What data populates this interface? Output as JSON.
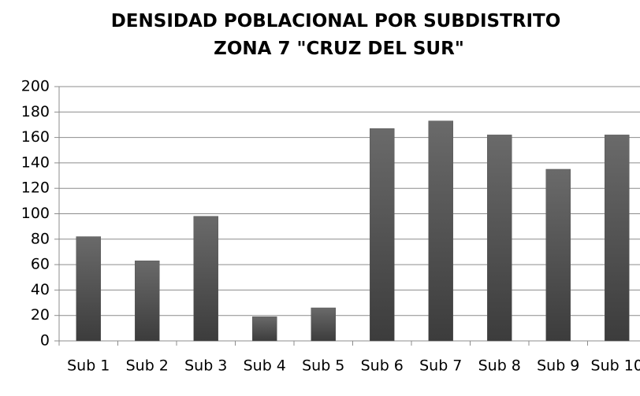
{
  "chart_data": {
    "type": "bar",
    "title": "DENSIDAD POBLACIONAL POR SUBDISTRITO\nZONA 7  \"CRUZ DEL SUR\"",
    "categories": [
      "Sub 1",
      "Sub 2",
      "Sub 3",
      "Sub 4",
      "Sub 5",
      "Sub 6",
      "Sub 7",
      "Sub 8",
      "Sub 9",
      "Sub 10"
    ],
    "values": [
      82,
      63,
      98,
      19,
      26,
      167,
      173,
      162,
      135,
      162
    ],
    "color": "#5a5a5a",
    "ylim": [
      0,
      200
    ],
    "yticks": [
      0,
      20,
      40,
      60,
      80,
      100,
      120,
      140,
      160,
      180,
      200
    ],
    "grid": true
  }
}
